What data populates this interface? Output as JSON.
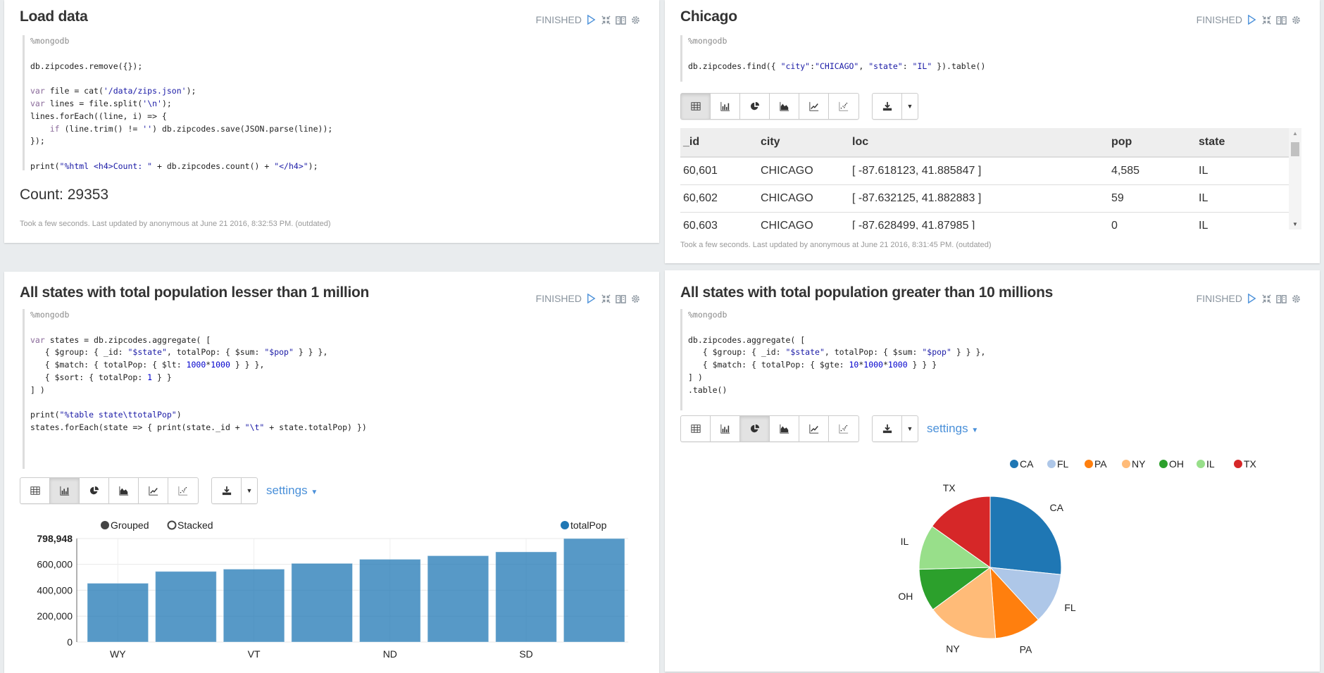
{
  "status_label": "FINISHED",
  "icons": {
    "run": "play-icon",
    "collapse": "collapse-icon",
    "editor": "book-icon",
    "settings": "gear-icon"
  },
  "viz_icons": [
    "table-icon",
    "bar-chart-icon",
    "pie-chart-icon",
    "area-chart-icon",
    "line-chart-icon",
    "scatter-chart-icon"
  ],
  "paragraphs": [
    {
      "title": "Load data",
      "code": "%mongodb\n\ndb.zipcodes.remove({});\n\nvar file = cat('/data/zips.json');\nvar lines = file.split('\\n');\nlines.forEach((line, i) => {\n    if (line.trim() != '') db.zipcodes.save(JSON.parse(line));\n});\n\nprint(\"%html <h4>Count: \" + db.zipcodes.count() + \"</h4>\");",
      "output": "Count: 29353",
      "footer": "Took a few seconds. Last updated by anonymous at June 21 2016, 8:32:53 PM. (outdated)"
    },
    {
      "title": "Chicago",
      "code": "%mongodb\n\ndb.zipcodes.find({ \"city\":\"CHICAGO\", \"state\": \"IL\" }).table()",
      "active_view": "table",
      "table": {
        "columns": [
          "_id",
          "city",
          "loc",
          "pop",
          "state"
        ],
        "rows": [
          [
            "60,601",
            "CHICAGO",
            "[ -87.618123, 41.885847 ]",
            "4,585",
            "IL"
          ],
          [
            "60,602",
            "CHICAGO",
            "[ -87.632125, 41.882883 ]",
            "59",
            "IL"
          ],
          [
            "60,603",
            "CHICAGO",
            "[ -87.628499, 41.87985 ]",
            "0",
            "IL"
          ]
        ]
      },
      "footer": "Took a few seconds. Last updated by anonymous at June 21 2016, 8:31:45 PM. (outdated)"
    },
    {
      "title": "All states with total population lesser than 1 million",
      "code": "%mongodb\n\nvar states = db.zipcodes.aggregate( [\n   { $group: { _id: \"$state\", totalPop: { $sum: \"$pop\" } } },\n   { $match: { totalPop: { $lt: 1000*1000 } } },\n   { $sort: { totalPop: 1 } }\n] )\n\nprint(\"%table state\\ttotalPop\")\nstates.forEach(state => { print(state._id + \"\\t\" + state.totalPop) })",
      "active_view": "bar",
      "settings_label": "settings",
      "grouped_label": "Grouped",
      "stacked_label": "Stacked"
    },
    {
      "title": "All states with total population greater than 10 millions",
      "code": "%mongodb\n\ndb.zipcodes.aggregate( [\n   { $group: { _id: \"$state\", totalPop: { $sum: \"$pop\" } } },\n   { $match: { totalPop: { $gte: 10*1000*1000 } } }\n] )\n.table()",
      "active_view": "pie",
      "settings_label": "settings"
    }
  ],
  "chart_data": [
    {
      "type": "bar",
      "categories": [
        "WY",
        "",
        "VT",
        "",
        "ND",
        "",
        "SD",
        ""
      ],
      "series": [
        {
          "name": "totalPop",
          "values": [
            453588,
            545000,
            562758,
            606900,
            638800,
            666168,
            696004,
            798948
          ],
          "color": "#1f77b4"
        }
      ],
      "yticks": [
        "0",
        "200,000",
        "400,000",
        "600,000",
        "798,948"
      ],
      "ytick_values": [
        0,
        200000,
        400000,
        600000,
        798948
      ],
      "ylim": [
        0,
        798948
      ],
      "grid": true,
      "legend": "top-right"
    },
    {
      "type": "pie",
      "labels": [
        "CA",
        "FL",
        "PA",
        "NY",
        "OH",
        "IL",
        "TX"
      ],
      "values": [
        29760021,
        12937926,
        11881643,
        17990455,
        10847115,
        11430602,
        16986510
      ],
      "colors": [
        "#1f77b4",
        "#aec7e8",
        "#ff7f0e",
        "#ffbb78",
        "#2ca02c",
        "#98df8a",
        "#d62728"
      ],
      "legend": "top-right"
    }
  ]
}
